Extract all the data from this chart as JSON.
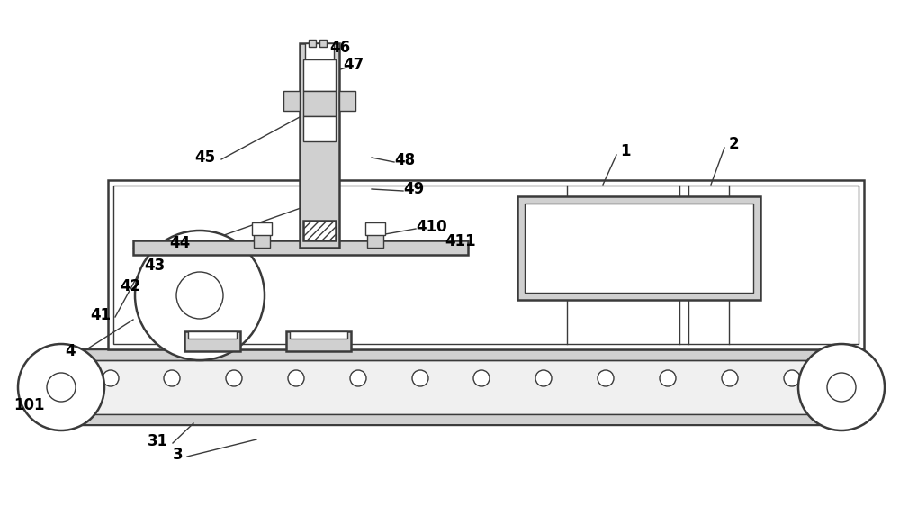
{
  "bg_color": "#ffffff",
  "line_color": "#3a3a3a",
  "light_gray": "#d0d0d0",
  "fig_width": 10.0,
  "fig_height": 5.83
}
